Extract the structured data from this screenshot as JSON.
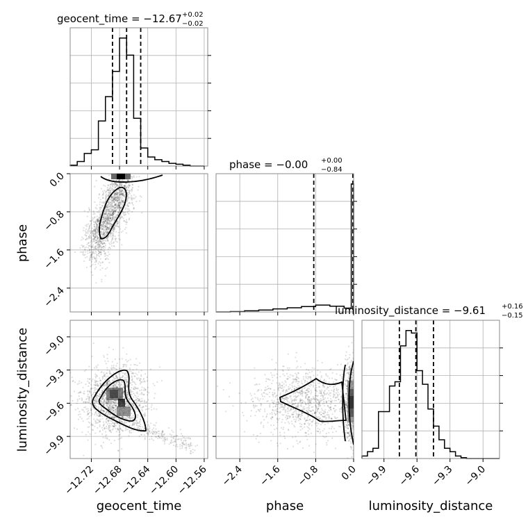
{
  "chart_data": {
    "type": "corner",
    "params": [
      "geocent_time",
      "phase",
      "luminosity_distance"
    ],
    "titles": {
      "geocent_time": {
        "prefix": "geocent_time = ",
        "median": "−12.67",
        "plus": "+0.02",
        "minus": "−0.02"
      },
      "phase": {
        "prefix": "phase = ",
        "median": "−0.00",
        "plus": "+0.00",
        "minus": "−0.84"
      },
      "luminosity_distance": {
        "prefix": "luminosity_distance = ",
        "median": "−9.61",
        "plus": "+0.16",
        "minus": "−0.15"
      }
    },
    "axis_labels": {
      "geocent_time": "geocent_time",
      "phase": "phase",
      "luminosity_distance": "luminosity_distance"
    },
    "ranges": {
      "geocent_time": [
        -12.75,
        -12.555
      ],
      "phase": [
        -2.9,
        0.0
      ],
      "luminosity_distance": [
        -10.1,
        -8.85
      ]
    },
    "ticks": {
      "geocent_time": {
        "values": [
          -12.72,
          -12.68,
          -12.64,
          -12.6,
          -12.56
        ],
        "labels": [
          "−12.72",
          "−12.68",
          "−12.64",
          "−12.60",
          "−12.56"
        ]
      },
      "phase": {
        "values": [
          -2.4,
          -1.6,
          -0.8,
          0.0
        ],
        "labels": [
          "−2.4",
          "−1.6",
          "−0.8",
          "0.0"
        ]
      },
      "luminosity_distance": {
        "values": [
          -9.9,
          -9.6,
          -9.3,
          -9.0
        ],
        "labels": [
          "−9.9",
          "−9.6",
          "−9.3",
          "−9.0"
        ]
      }
    },
    "quantiles": {
      "geocent_time": [
        -12.69,
        -12.67,
        -12.65
      ],
      "phase": [
        -0.84,
        0.0,
        0.0
      ],
      "luminosity_distance": [
        -9.76,
        -9.61,
        -9.45
      ]
    },
    "histograms": {
      "geocent_time": {
        "edges": [
          -12.75,
          -12.74,
          -12.73,
          -12.72,
          -12.71,
          -12.7,
          -12.69,
          -12.68,
          -12.67,
          -12.66,
          -12.65,
          -12.64,
          -12.63,
          -12.62,
          -12.61,
          -12.6,
          -12.59,
          -12.58,
          -12.57,
          -12.56
        ],
        "counts": [
          1,
          5,
          14,
          18,
          50,
          77,
          105,
          142,
          123,
          53,
          20,
          10,
          7,
          5,
          3,
          2,
          1,
          0,
          0
        ]
      },
      "phase": {
        "edges": [
          -2.9,
          -2.6,
          -2.3,
          -2.0,
          -1.7,
          -1.4,
          -1.1,
          -0.8,
          -0.5,
          -0.2,
          -0.05,
          0.0
        ],
        "counts": [
          0,
          1,
          3,
          5,
          8,
          11,
          14,
          18,
          15,
          10,
          335
        ]
      },
      "luminosity_distance": {
        "edges": [
          -10.1,
          -10.05,
          -10.0,
          -9.95,
          -9.9,
          -9.85,
          -9.8,
          -9.75,
          -9.7,
          -9.65,
          -9.6,
          -9.55,
          -9.5,
          -9.45,
          -9.4,
          -9.35,
          -9.3,
          -9.25,
          -9.2,
          -9.15,
          -9.1,
          -9.05,
          -9.0,
          -8.95,
          -8.9,
          -8.85
        ],
        "counts": [
          3,
          8,
          12,
          55,
          55,
          85,
          90,
          132,
          150,
          147,
          103,
          87,
          58,
          38,
          22,
          12,
          8,
          3,
          1,
          0,
          0,
          0,
          0,
          0,
          0
        ]
      }
    },
    "grid": true
  }
}
